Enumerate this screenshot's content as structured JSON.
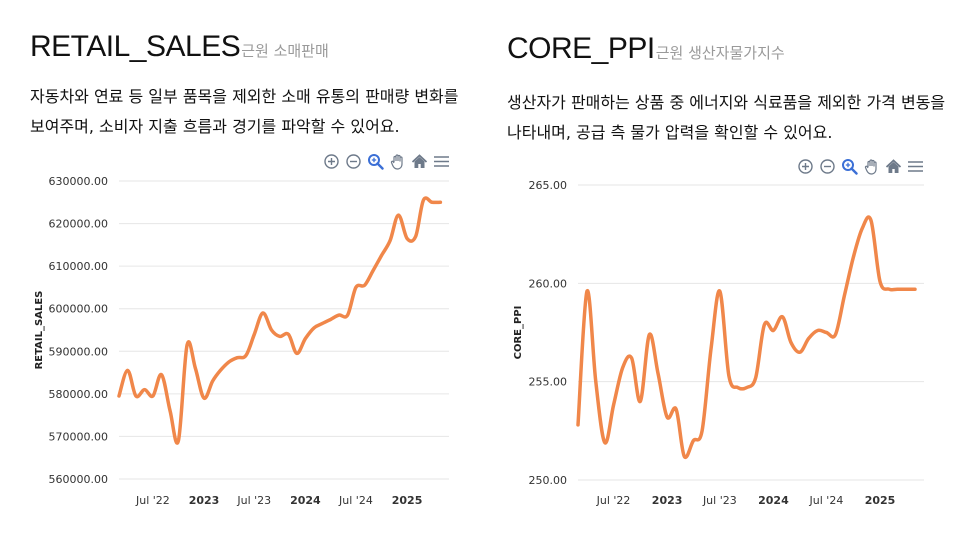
{
  "colors": {
    "line": "#f0874a",
    "grid": "#e6e6e6",
    "icon": "#6e7a8a",
    "title": "#111111",
    "subtitle": "#9a9a9a"
  },
  "toolbar": {
    "icons": [
      "zoom-in-icon",
      "zoom-out-icon",
      "zoom-select-icon",
      "pan-hand-icon",
      "home-reset-icon",
      "menu-icon"
    ]
  },
  "panels": [
    {
      "title": "RETAIL_SALES",
      "subtitle": "근원 소매판매",
      "description": "자동차와 연료 등 일부 품목을 제외한 소매 유통의 판매량 변화를 보여주며, 소비자 지출 흐름과 경기를 파악할 수 있어요."
    },
    {
      "title": "CORE_PPI",
      "subtitle": "근원 생산자물가지수",
      "description": "생산자가 판매하는 상품 중 에너지와 식료품을 제외한 가격 변동을 나타내며, 공급 측 물가 압력을 확인할 수 있어요."
    }
  ],
  "chart_data": [
    {
      "type": "line",
      "ylabel": "RETAIL_SALES",
      "ylim": [
        560000,
        630000
      ],
      "yticks": [
        560000,
        570000,
        580000,
        590000,
        600000,
        610000,
        620000,
        630000
      ],
      "ytick_labels": [
        "560000.00",
        "570000.00",
        "580000.00",
        "590000.00",
        "600000.00",
        "610000.00",
        "620000.00",
        "630000.00"
      ],
      "xlim": [
        "2022-03-01",
        "2025-06-01"
      ],
      "xticks": [
        "2022-07-01",
        "2023-01-01",
        "2023-07-01",
        "2024-01-01",
        "2024-07-01",
        "2025-01-01"
      ],
      "xtick_labels": [
        "Jul '22",
        "2023",
        "Jul '23",
        "2024",
        "Jul '24",
        "2025"
      ],
      "grid": true,
      "series": [
        {
          "x": [
            "2022-03-01",
            "2022-04-01",
            "2022-05-01",
            "2022-06-01",
            "2022-07-01",
            "2022-08-01",
            "2022-09-01",
            "2022-10-01",
            "2022-11-01",
            "2022-12-01",
            "2023-01-01",
            "2023-02-01",
            "2023-03-01",
            "2023-04-01",
            "2023-05-01",
            "2023-06-01",
            "2023-07-01",
            "2023-08-01",
            "2023-09-01",
            "2023-10-01",
            "2023-11-01",
            "2023-12-01",
            "2024-01-01",
            "2024-02-01",
            "2024-03-01",
            "2024-04-01",
            "2024-05-01",
            "2024-06-01",
            "2024-07-01",
            "2024-08-01",
            "2024-09-01",
            "2024-10-01",
            "2024-11-01",
            "2024-12-01",
            "2025-01-01",
            "2025-02-01",
            "2025-03-01",
            "2025-04-01",
            "2025-05-01"
          ],
          "y": [
            579500,
            585500,
            579500,
            581000,
            579500,
            584500,
            576000,
            569000,
            591500,
            586000,
            579000,
            583000,
            585500,
            587500,
            588500,
            589000,
            594000,
            599000,
            595000,
            593500,
            594000,
            589500,
            593000,
            595500,
            596500,
            597500,
            598500,
            598500,
            605000,
            605500,
            609000,
            612500,
            616000,
            622000,
            616500,
            617000,
            625500,
            625000,
            625000
          ]
        }
      ]
    },
    {
      "type": "line",
      "ylabel": "CORE_PPI",
      "ylim": [
        250,
        265
      ],
      "yticks": [
        250,
        255,
        260,
        265
      ],
      "ytick_labels": [
        "250.00",
        "255.00",
        "260.00",
        "265.00"
      ],
      "xlim": [
        "2022-03-01",
        "2025-06-01"
      ],
      "xticks": [
        "2022-07-01",
        "2023-01-01",
        "2023-07-01",
        "2024-01-01",
        "2024-07-01",
        "2025-01-01"
      ],
      "xtick_labels": [
        "Jul '22",
        "2023",
        "Jul '23",
        "2024",
        "Jul '24",
        "2025"
      ],
      "grid": true,
      "series": [
        {
          "x": [
            "2022-03-01",
            "2022-04-01",
            "2022-05-01",
            "2022-06-01",
            "2022-07-01",
            "2022-08-01",
            "2022-09-01",
            "2022-10-01",
            "2022-11-01",
            "2022-12-01",
            "2023-01-01",
            "2023-02-01",
            "2023-03-01",
            "2023-04-01",
            "2023-05-01",
            "2023-06-01",
            "2023-07-01",
            "2023-08-01",
            "2023-09-01",
            "2023-10-01",
            "2023-11-01",
            "2023-12-01",
            "2024-01-01",
            "2024-02-01",
            "2024-03-01",
            "2024-04-01",
            "2024-05-01",
            "2024-06-01",
            "2024-07-01",
            "2024-08-01",
            "2024-09-01",
            "2024-10-01",
            "2024-11-01",
            "2024-12-01",
            "2025-01-01",
            "2025-02-01",
            "2025-03-01",
            "2025-04-01",
            "2025-05-01"
          ],
          "y": [
            252.8,
            259.6,
            255.0,
            251.9,
            253.8,
            255.7,
            256.2,
            254.0,
            257.4,
            255.4,
            253.2,
            253.6,
            251.2,
            252.0,
            252.5,
            256.7,
            259.6,
            255.3,
            254.7,
            254.7,
            255.2,
            257.9,
            257.6,
            258.3,
            257.0,
            256.5,
            257.2,
            257.6,
            257.5,
            257.4,
            259.4,
            261.3,
            262.8,
            263.2,
            260.1,
            259.7,
            259.7,
            259.7,
            259.7
          ]
        }
      ]
    }
  ]
}
